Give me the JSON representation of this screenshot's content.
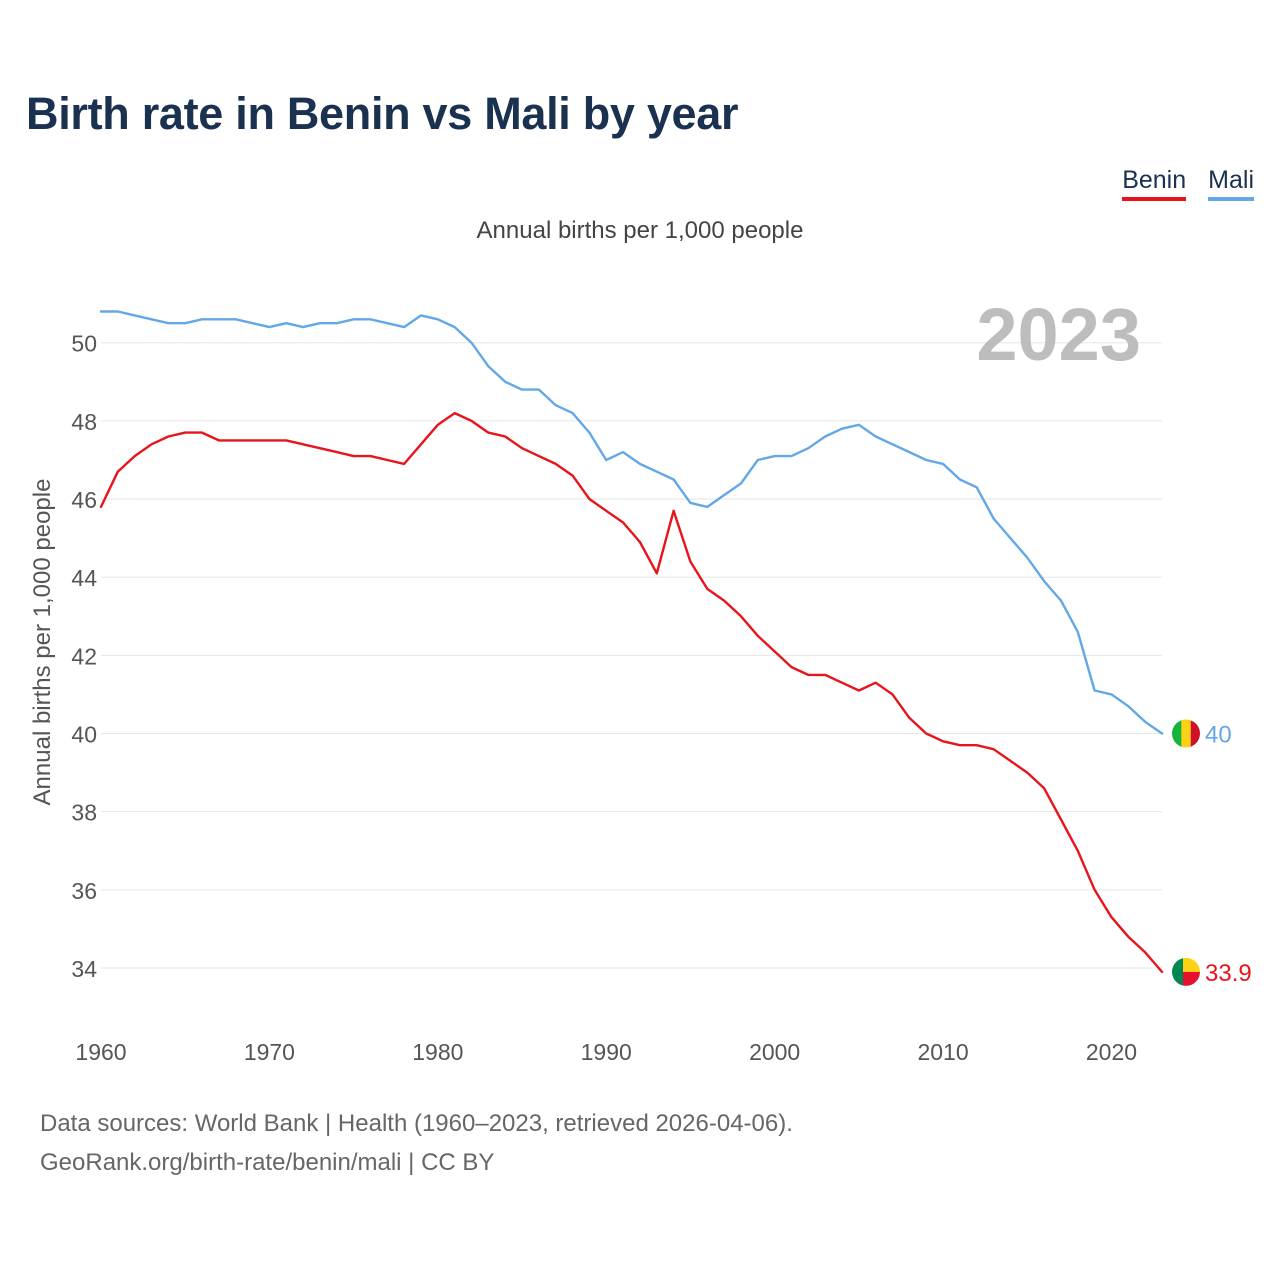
{
  "title": "Birth rate in Benin vs Mali by year",
  "subtitle": "Annual births per 1,000 people",
  "legend": [
    {
      "name": "Benin",
      "color": "#e8141c"
    },
    {
      "name": "Mali",
      "color": "#63a8e6"
    }
  ],
  "year_label": "2023",
  "source": {
    "line1": "Data sources: World Bank | Health (1960–2023, retrieved 2026-04-06).",
    "line2": "GeoRank.org/birth-rate/benin/mali | CC BY"
  },
  "chart_data": {
    "type": "line",
    "title": "Birth rate in Benin vs Mali by year",
    "xlabel": "",
    "ylabel": "Annual births per 1,000 people",
    "xlim": [
      1960,
      2023
    ],
    "ylim": [
      33,
      51.5
    ],
    "x_ticks": [
      1960,
      1970,
      1980,
      1990,
      2000,
      2010,
      2020
    ],
    "y_ticks": [
      34,
      36,
      38,
      40,
      42,
      44,
      46,
      48,
      50
    ],
    "grid": true,
    "legend_position": "top-right",
    "x": [
      1960,
      1961,
      1962,
      1963,
      1964,
      1965,
      1966,
      1967,
      1968,
      1969,
      1970,
      1971,
      1972,
      1973,
      1974,
      1975,
      1976,
      1977,
      1978,
      1979,
      1980,
      1981,
      1982,
      1983,
      1984,
      1985,
      1986,
      1987,
      1988,
      1989,
      1990,
      1991,
      1992,
      1993,
      1994,
      1995,
      1996,
      1997,
      1998,
      1999,
      2000,
      2001,
      2002,
      2003,
      2004,
      2005,
      2006,
      2007,
      2008,
      2009,
      2010,
      2011,
      2012,
      2013,
      2014,
      2015,
      2016,
      2017,
      2018,
      2019,
      2020,
      2021,
      2022,
      2023
    ],
    "series": [
      {
        "name": "Benin",
        "color": "#e8141c",
        "end_label": "33.9",
        "values": [
          45.8,
          46.7,
          47.1,
          47.4,
          47.6,
          47.7,
          47.7,
          47.5,
          47.5,
          47.5,
          47.5,
          47.5,
          47.4,
          47.3,
          47.2,
          47.1,
          47.1,
          47.0,
          46.9,
          47.4,
          47.9,
          48.2,
          48.0,
          47.7,
          47.6,
          47.3,
          47.1,
          46.9,
          46.6,
          46.0,
          45.7,
          45.4,
          44.9,
          44.1,
          45.7,
          44.4,
          43.7,
          43.4,
          43.0,
          42.5,
          42.1,
          41.7,
          41.5,
          41.5,
          41.3,
          41.1,
          41.3,
          41.0,
          40.4,
          40.0,
          39.8,
          39.7,
          39.7,
          39.6,
          39.3,
          39.0,
          38.6,
          37.8,
          37.0,
          36.0,
          35.3,
          34.8,
          34.4,
          33.9
        ]
      },
      {
        "name": "Mali",
        "color": "#63a8e6",
        "end_label": "40",
        "values": [
          50.8,
          50.8,
          50.7,
          50.6,
          50.5,
          50.5,
          50.6,
          50.6,
          50.6,
          50.5,
          50.4,
          50.5,
          50.4,
          50.5,
          50.5,
          50.6,
          50.6,
          50.5,
          50.4,
          50.7,
          50.6,
          50.4,
          50.0,
          49.4,
          49.0,
          48.8,
          48.8,
          48.4,
          48.2,
          47.7,
          47.0,
          47.2,
          46.9,
          46.7,
          46.5,
          45.9,
          45.8,
          46.1,
          46.4,
          47.0,
          47.1,
          47.1,
          47.3,
          47.6,
          47.8,
          47.9,
          47.6,
          47.4,
          47.2,
          47.0,
          46.9,
          46.5,
          46.3,
          45.5,
          45.0,
          44.5,
          43.9,
          43.4,
          42.6,
          41.1,
          41.0,
          40.7,
          40.3,
          40.0
        ]
      }
    ]
  }
}
